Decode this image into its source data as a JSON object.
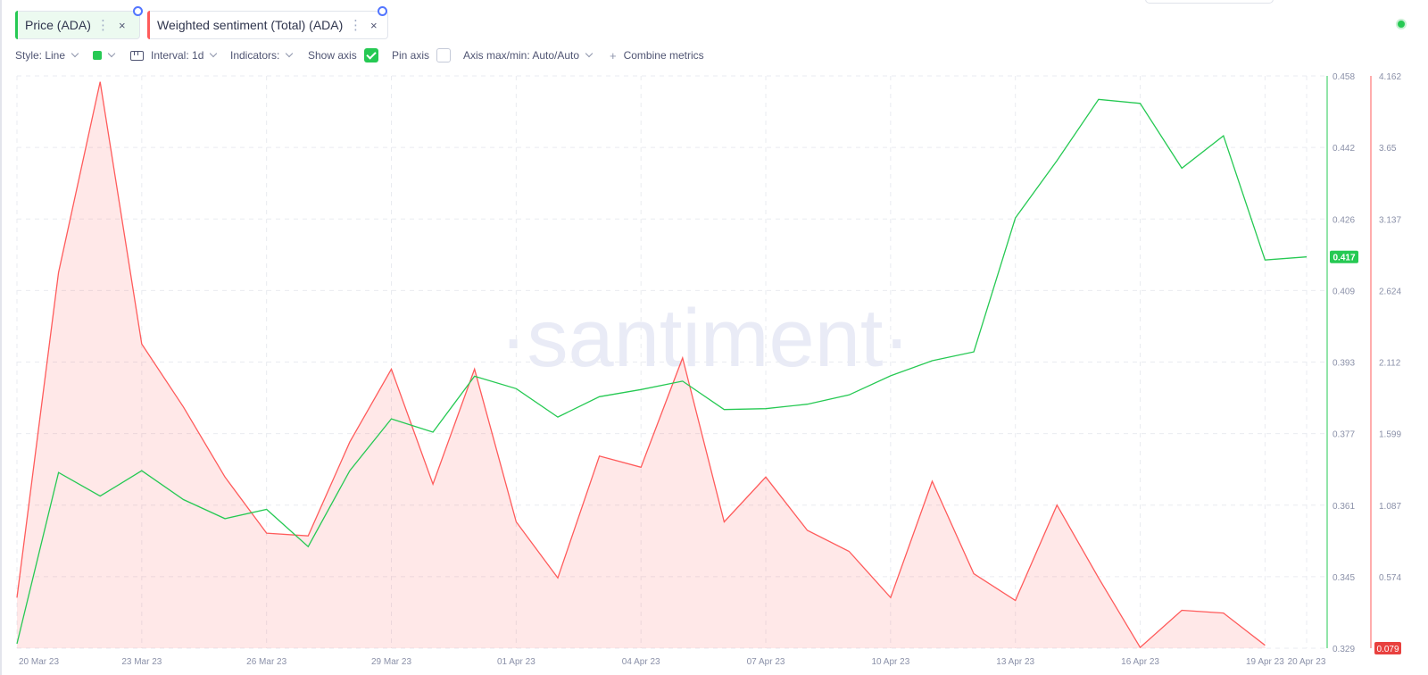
{
  "metrics": [
    {
      "label": "Price (ADA)",
      "color": "#26c953"
    },
    {
      "label": "Weighted sentiment (Total) (ADA)",
      "color": "#ff5b5b"
    }
  ],
  "icons": {
    "more": "vertical-dots-icon",
    "close": "close-icon",
    "settings": "gear-icon"
  },
  "glyphs": {
    "more": "⋮",
    "close": "×",
    "plus": "+"
  },
  "toolbar": {
    "style_label": "Style: Line",
    "interval_label": "Interval: 1d",
    "indicators_label": "Indicators:",
    "show_axis_label": "Show axis",
    "show_axis_checked": true,
    "pin_axis_label": "Pin axis",
    "pin_axis_checked": false,
    "axis_label": "Axis max/min: Auto/Auto",
    "combine_label": "Combine metrics"
  },
  "watermark": "·santiment·",
  "chart_data": {
    "type": "line",
    "x": [
      "20 Mar 23",
      "21 Mar 23",
      "22 Mar 23",
      "23 Mar 23",
      "24 Mar 23",
      "25 Mar 23",
      "26 Mar 23",
      "27 Mar 23",
      "28 Mar 23",
      "29 Mar 23",
      "30 Mar 23",
      "31 Mar 23",
      "01 Apr 23",
      "02 Apr 23",
      "03 Apr 23",
      "04 Apr 23",
      "05 Apr 23",
      "06 Apr 23",
      "07 Apr 23",
      "08 Apr 23",
      "09 Apr 23",
      "10 Apr 23",
      "11 Apr 23",
      "12 Apr 23",
      "13 Apr 23",
      "14 Apr 23",
      "15 Apr 23",
      "16 Apr 23",
      "17 Apr 23",
      "18 Apr 23",
      "19 Apr 23",
      "20 Apr 23"
    ],
    "x_tick_labels": [
      "20 Mar 23",
      "23 Mar 23",
      "26 Mar 23",
      "29 Mar 23",
      "01 Apr 23",
      "04 Apr 23",
      "07 Apr 23",
      "10 Apr 23",
      "13 Apr 23",
      "16 Apr 23",
      "19 Apr 23",
      "20 Apr 23"
    ],
    "series": [
      {
        "name": "Price (ADA)",
        "type": "line",
        "axis": "left-y",
        "color": "#26c953",
        "values": [
          0.33,
          0.3686,
          0.3633,
          0.369,
          0.3625,
          0.3582,
          0.3603,
          0.3519,
          0.369,
          0.3807,
          0.3777,
          0.3903,
          0.3875,
          0.3811,
          0.3857,
          0.3873,
          0.3892,
          0.3828,
          0.383,
          0.384,
          0.3861,
          0.3904,
          0.3938,
          0.3958,
          0.426,
          0.4389,
          0.4527,
          0.4518,
          0.4372,
          0.4445,
          0.4165,
          0.4172
        ],
        "last_value_label": "0.417"
      },
      {
        "name": "Weighted sentiment (Total) (ADA)",
        "type": "area",
        "axis": "right-y",
        "color": "#ff5b5b",
        "values": [
          0.44,
          2.76,
          4.12,
          2.25,
          1.8,
          1.3,
          0.9,
          0.88,
          1.55,
          2.07,
          1.25,
          2.07,
          0.98,
          0.58,
          1.45,
          1.37,
          2.15,
          0.98,
          1.3,
          0.92,
          0.77,
          0.44,
          1.27,
          0.61,
          0.42,
          1.1,
          0.58,
          0.085,
          0.35,
          0.33,
          0.1,
          null
        ],
        "last_value_label": "0.079"
      }
    ],
    "left_y": {
      "min": 0.329,
      "max": 0.458,
      "ticks": [
        "0.458",
        "0.442",
        "0.426",
        "0.409",
        "0.393",
        "0.377",
        "0.361",
        "0.345",
        "0.329"
      ]
    },
    "right_y": {
      "min": 0.079,
      "max": 4.162,
      "ticks": [
        "4.162",
        "3.65",
        "3.137",
        "2.624",
        "2.112",
        "1.599",
        "1.087",
        "0.574",
        "0.079"
      ]
    },
    "grid": true,
    "grid_style": "dashed"
  }
}
